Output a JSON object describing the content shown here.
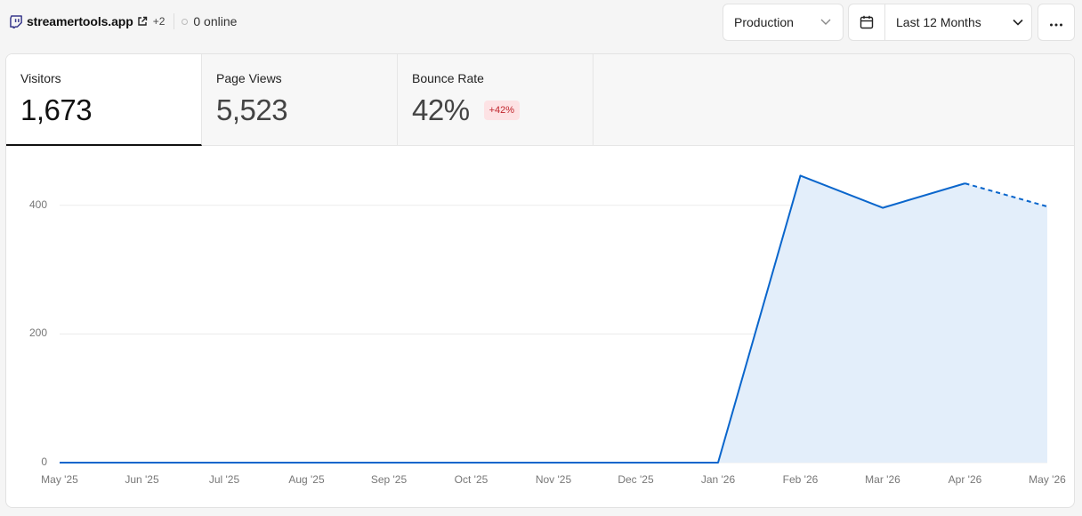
{
  "header": {
    "site_name": "streamertools.app",
    "extra_sites": "+2",
    "online": "0 online",
    "environment": "Production",
    "date_range": "Last 12 Months"
  },
  "metrics": [
    {
      "label": "Visitors",
      "value": "1,673"
    },
    {
      "label": "Page Views",
      "value": "5,523"
    },
    {
      "label": "Bounce Rate",
      "value": "42%",
      "change": "+42%"
    }
  ],
  "colors": {
    "line": "#0a66cc",
    "area": "#e3eefa",
    "badge_text": "#c0262d",
    "badge_bg": "#fde2e4"
  },
  "chart_data": {
    "type": "area",
    "x": [
      "May '25",
      "Jun '25",
      "Jul '25",
      "Aug '25",
      "Sep '25",
      "Oct '25",
      "Nov '25",
      "Dec '25",
      "Jan '26",
      "Feb '26",
      "Mar '26",
      "Apr '26",
      "May '26"
    ],
    "series": [
      {
        "values": [
          0,
          0,
          0,
          0,
          0,
          0,
          0,
          0,
          0,
          446,
          396,
          434,
          398
        ]
      }
    ],
    "last_segment_dashed": true,
    "yticks": [
      "0",
      "200",
      "400"
    ],
    "ylim": [
      0,
      560
    ],
    "grid": true
  }
}
